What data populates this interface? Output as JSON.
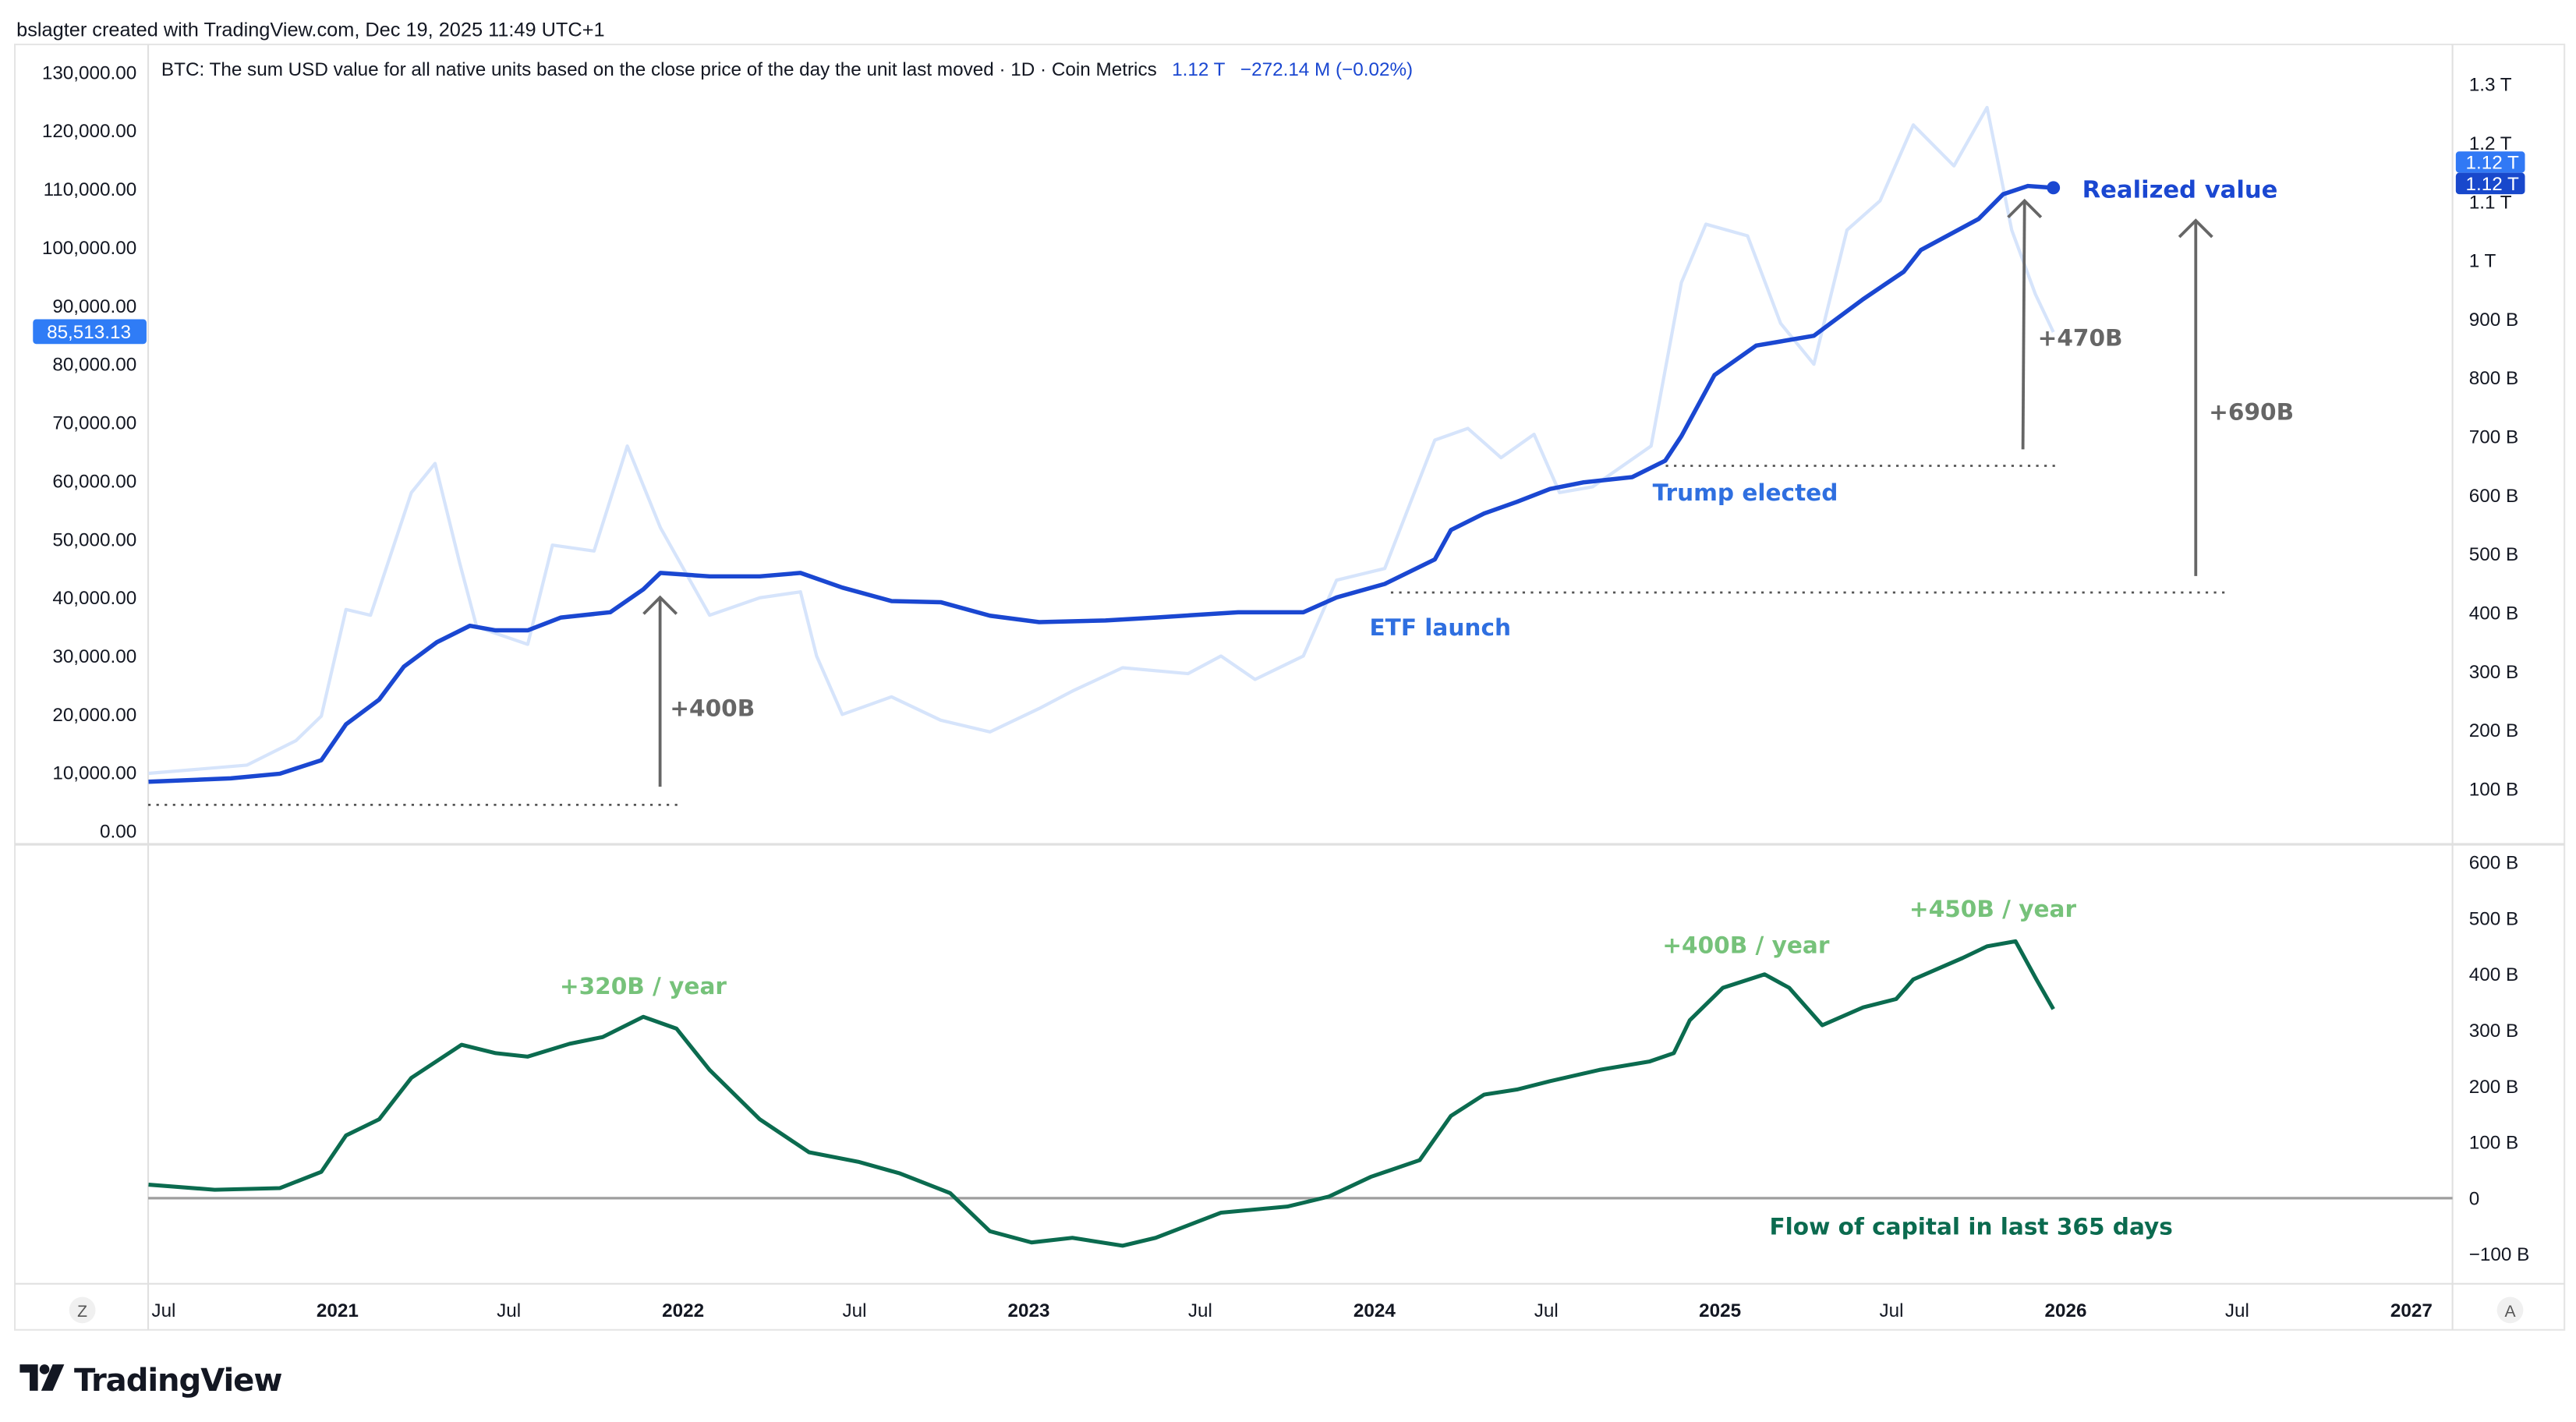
{
  "header": {
    "credit": "bslagter created with TradingView.com, Dec 19, 2025 11:49 UTC+1"
  },
  "legend": {
    "title": "BTC: The sum USD value for all native units based on the close price of the day the unit last moved · 1D · Coin Metrics",
    "value": "1.12 T",
    "change": "−272.14 M (−0.02%)"
  },
  "price_label": "85,513.13",
  "right_labels": [
    "1.12 T",
    "1.12 T"
  ],
  "logo": "TradingView",
  "axis_buttons": {
    "left": "Z",
    "right": "A"
  },
  "colors": {
    "realized": "#1a47d1",
    "price": "#d6e4fb",
    "flow": "#0b6b4f",
    "annotation_gray": "#666666",
    "annotation_blue": "#2f6fe0",
    "annotation_green": "#76c27a",
    "label_light_blue": "#3179f5",
    "label_dark_blue": "#1848cc"
  },
  "annotations": {
    "realized_value": "Realized value",
    "etf": "ETF launch",
    "trump": "Trump elected",
    "plus400": "+400B",
    "plus470": "+470B",
    "plus690": "+690B",
    "rate320": "+320B / year",
    "rate400": "+400B / year",
    "rate450": "+450B / year",
    "flow_label": "Flow of capital in last 365 days"
  },
  "chart_data": [
    {
      "type": "line",
      "pane": "main",
      "left_axis": {
        "ticks": [
          0,
          10000,
          20000,
          30000,
          40000,
          50000,
          60000,
          70000,
          80000,
          90000,
          100000,
          110000,
          120000,
          130000
        ],
        "ylim": [
          0,
          130000
        ]
      },
      "right_axis": {
        "ticks": [
          "100 B",
          "200 B",
          "300 B",
          "400 B",
          "500 B",
          "600 B",
          "700 B",
          "800 B",
          "900 B",
          "1 T",
          "1.1 T",
          "1.2 T",
          "1.3 T"
        ],
        "tick_values_B": [
          100,
          200,
          300,
          400,
          500,
          600,
          700,
          800,
          900,
          1000,
          1100,
          1200,
          1300
        ]
      },
      "x_ticks": [
        {
          "label": "Jul",
          "date": "2020-07-01",
          "bold": false
        },
        {
          "label": "2021",
          "date": "2021-01-01",
          "bold": true
        },
        {
          "label": "Jul",
          "date": "2021-07-01",
          "bold": false
        },
        {
          "label": "2022",
          "date": "2022-01-01",
          "bold": true
        },
        {
          "label": "Jul",
          "date": "2022-07-01",
          "bold": false
        },
        {
          "label": "2023",
          "date": "2023-01-01",
          "bold": true
        },
        {
          "label": "Jul",
          "date": "2023-07-01",
          "bold": false
        },
        {
          "label": "2024",
          "date": "2024-01-01",
          "bold": true
        },
        {
          "label": "Jul",
          "date": "2024-07-01",
          "bold": false
        },
        {
          "label": "2025",
          "date": "2025-01-01",
          "bold": true
        },
        {
          "label": "Jul",
          "date": "2025-07-01",
          "bold": false
        },
        {
          "label": "2026",
          "date": "2026-01-01",
          "bold": true
        },
        {
          "label": "Jul",
          "date": "2026-07-01",
          "bold": false
        },
        {
          "label": "2027",
          "date": "2027-01-01",
          "bold": true
        }
      ],
      "series": [
        {
          "name": "Realized value",
          "axis": "right",
          "unit": "B USD",
          "points": [
            [
              "2020-06-15",
              112
            ],
            [
              "2020-09-10",
              118
            ],
            [
              "2020-11-01",
              126
            ],
            [
              "2020-12-15",
              149
            ],
            [
              "2021-01-10",
              210
            ],
            [
              "2021-02-14",
              252
            ],
            [
              "2021-03-12",
              308
            ],
            [
              "2021-04-16",
              350
            ],
            [
              "2021-05-21",
              378
            ],
            [
              "2021-06-17",
              370
            ],
            [
              "2021-07-21",
              370
            ],
            [
              "2021-08-25",
              392
            ],
            [
              "2021-10-16",
              401
            ],
            [
              "2021-11-20",
              440
            ],
            [
              "2021-12-08",
              468
            ],
            [
              "2022-01-29",
              462
            ],
            [
              "2022-03-23",
              462
            ],
            [
              "2022-05-05",
              468
            ],
            [
              "2022-06-18",
              443
            ],
            [
              "2022-08-09",
              420
            ],
            [
              "2022-09-30",
              418
            ],
            [
              "2022-11-21",
              395
            ],
            [
              "2023-01-12",
              384
            ],
            [
              "2023-03-23",
              387
            ],
            [
              "2023-05-15",
              392
            ],
            [
              "2023-08-10",
              401
            ],
            [
              "2023-10-18",
              401
            ],
            [
              "2023-11-22",
              426
            ],
            [
              "2024-01-12",
              449
            ],
            [
              "2024-03-05",
              491
            ],
            [
              "2024-03-22",
              541
            ],
            [
              "2024-04-26",
              569
            ],
            [
              "2024-05-31",
              589
            ],
            [
              "2024-07-05",
              611
            ],
            [
              "2024-08-09",
              622
            ],
            [
              "2024-09-30",
              631
            ],
            [
              "2024-11-04",
              659
            ],
            [
              "2024-11-21",
              701
            ],
            [
              "2024-12-26",
              805
            ],
            [
              "2025-02-08",
              855
            ],
            [
              "2025-04-10",
              872
            ],
            [
              "2025-04-27",
              892
            ],
            [
              "2025-06-01",
              934
            ],
            [
              "2025-07-14",
              981
            ],
            [
              "2025-08-01",
              1018
            ],
            [
              "2025-10-01",
              1071
            ],
            [
              "2025-10-27",
              1113
            ],
            [
              "2025-11-22",
              1127
            ],
            [
              "2025-12-19",
              1124
            ]
          ]
        },
        {
          "name": "BTC",
          "axis": "left",
          "unit": "USD",
          "points": [
            [
              "2020-06-15",
              9900
            ],
            [
              "2020-09-27",
              11300
            ],
            [
              "2020-11-18",
              15500
            ],
            [
              "2020-12-15",
              19700
            ],
            [
              "2021-01-10",
              38000
            ],
            [
              "2021-02-05",
              37000
            ],
            [
              "2021-03-20",
              58000
            ],
            [
              "2021-04-14",
              63000
            ],
            [
              "2021-05-10",
              46000
            ],
            [
              "2021-05-28",
              35000
            ],
            [
              "2021-07-21",
              32000
            ],
            [
              "2021-08-16",
              49000
            ],
            [
              "2021-09-29",
              48000
            ],
            [
              "2021-11-03",
              66000
            ],
            [
              "2021-12-08",
              52000
            ],
            [
              "2022-01-29",
              37000
            ],
            [
              "2022-03-23",
              40000
            ],
            [
              "2022-05-05",
              41000
            ],
            [
              "2022-05-22",
              30000
            ],
            [
              "2022-06-18",
              20000
            ],
            [
              "2022-08-09",
              23000
            ],
            [
              "2022-09-30",
              19000
            ],
            [
              "2022-11-21",
              17000
            ],
            [
              "2023-01-12",
              21000
            ],
            [
              "2023-02-16",
              24000
            ],
            [
              "2023-04-10",
              28000
            ],
            [
              "2023-06-18",
              27000
            ],
            [
              "2023-07-23",
              30000
            ],
            [
              "2023-08-28",
              26000
            ],
            [
              "2023-10-18",
              30000
            ],
            [
              "2023-11-22",
              43000
            ],
            [
              "2024-01-12",
              45000
            ],
            [
              "2024-03-05",
              67000
            ],
            [
              "2024-04-09",
              69000
            ],
            [
              "2024-05-14",
              64000
            ],
            [
              "2024-06-18",
              68000
            ],
            [
              "2024-07-15",
              58000
            ],
            [
              "2024-08-19",
              59000
            ],
            [
              "2024-10-20",
              66000
            ],
            [
              "2024-11-21",
              94000
            ],
            [
              "2024-12-17",
              104000
            ],
            [
              "2025-01-30",
              102000
            ],
            [
              "2025-03-06",
              87000
            ],
            [
              "2025-04-10",
              80000
            ],
            [
              "2025-05-15",
              103000
            ],
            [
              "2025-06-19",
              108000
            ],
            [
              "2025-07-24",
              121000
            ],
            [
              "2025-09-05",
              114000
            ],
            [
              "2025-10-10",
              124000
            ],
            [
              "2025-11-05",
              103000
            ],
            [
              "2025-11-30",
              92000
            ],
            [
              "2025-12-19",
              85513.13
            ]
          ]
        }
      ]
    },
    {
      "type": "line",
      "pane": "lower",
      "right_axis": {
        "ticks": [
          "−100 B",
          "0",
          "100 B",
          "200 B",
          "300 B",
          "400 B",
          "500 B",
          "600 B"
        ],
        "tick_values_B": [
          -100,
          0,
          100,
          200,
          300,
          400,
          500,
          600
        ]
      },
      "series": [
        {
          "name": "Flow of capital in last 365 days",
          "unit": "B USD",
          "points": [
            [
              "2020-06-15",
              24
            ],
            [
              "2020-08-24",
              15
            ],
            [
              "2020-11-01",
              18
            ],
            [
              "2020-12-15",
              47
            ],
            [
              "2021-01-10",
              112
            ],
            [
              "2021-02-14",
              141
            ],
            [
              "2021-03-20",
              215
            ],
            [
              "2021-05-12",
              274
            ],
            [
              "2021-06-17",
              259
            ],
            [
              "2021-07-21",
              253
            ],
            [
              "2021-09-03",
              276
            ],
            [
              "2021-10-08",
              288
            ],
            [
              "2021-11-20",
              324
            ],
            [
              "2021-12-25",
              303
            ],
            [
              "2022-01-29",
              229
            ],
            [
              "2022-03-23",
              141
            ],
            [
              "2022-05-14",
              82
            ],
            [
              "2022-07-05",
              65
            ],
            [
              "2022-08-18",
              44
            ],
            [
              "2022-10-10",
              9
            ],
            [
              "2022-11-21",
              -59
            ],
            [
              "2023-01-04",
              -79
            ],
            [
              "2023-02-16",
              -71
            ],
            [
              "2023-04-10",
              -85
            ],
            [
              "2023-05-15",
              -71
            ],
            [
              "2023-07-23",
              -26
            ],
            [
              "2023-10-01",
              -15
            ],
            [
              "2023-11-14",
              3
            ],
            [
              "2023-12-28",
              38
            ],
            [
              "2024-02-18",
              68
            ],
            [
              "2024-03-22",
              147
            ],
            [
              "2024-04-26",
              185
            ],
            [
              "2024-05-31",
              194
            ],
            [
              "2024-07-05",
              209
            ],
            [
              "2024-08-26",
              229
            ],
            [
              "2024-10-18",
              244
            ],
            [
              "2024-11-13",
              259
            ],
            [
              "2024-11-30",
              318
            ],
            [
              "2025-01-04",
              376
            ],
            [
              "2025-02-17",
              400
            ],
            [
              "2025-03-15",
              376
            ],
            [
              "2025-04-19",
              309
            ],
            [
              "2025-06-01",
              341
            ],
            [
              "2025-07-06",
              356
            ],
            [
              "2025-07-24",
              391
            ],
            [
              "2025-09-14",
              429
            ],
            [
              "2025-10-10",
              450
            ],
            [
              "2025-11-09",
              459
            ],
            [
              "2025-12-01",
              391
            ],
            [
              "2025-12-19",
              338
            ]
          ]
        }
      ]
    }
  ]
}
